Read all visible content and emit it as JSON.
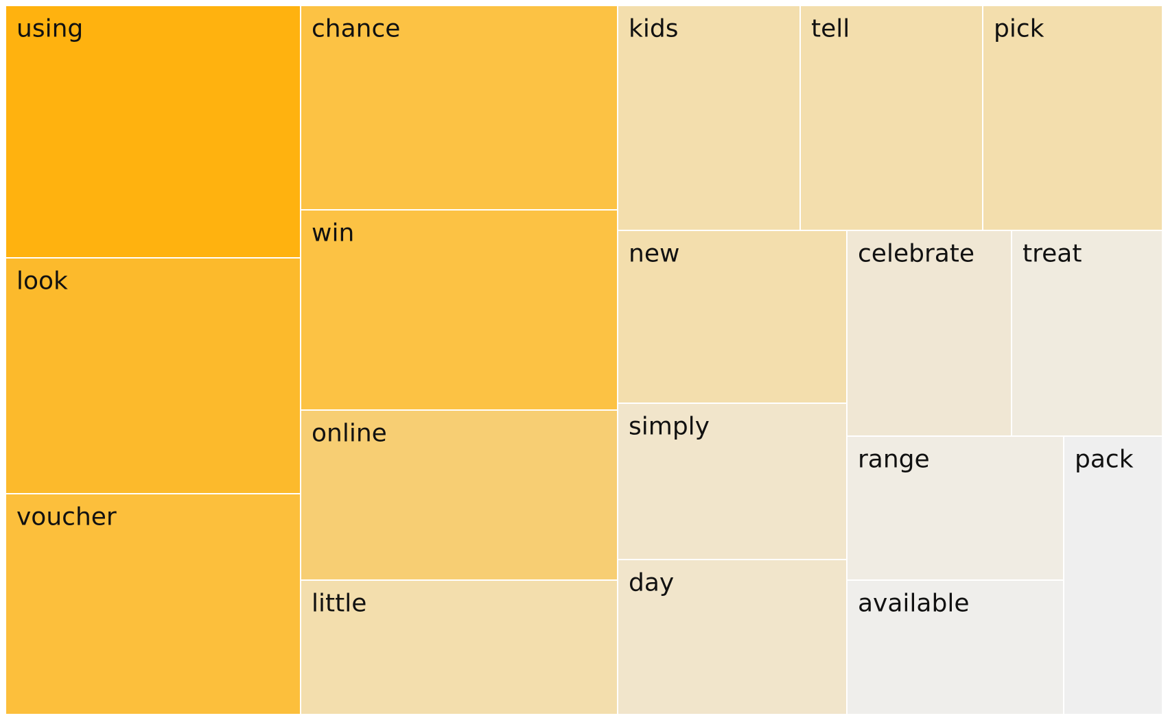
{
  "chart_data": {
    "type": "treemap",
    "title": "",
    "items": [
      {
        "label": "using",
        "color": "#FFB20F"
      },
      {
        "label": "look",
        "color": "#FCBA2C"
      },
      {
        "label": "voucher",
        "color": "#FCBF3C"
      },
      {
        "label": "chance",
        "color": "#FCC244"
      },
      {
        "label": "win",
        "color": "#FCC244"
      },
      {
        "label": "online",
        "color": "#F7CE73"
      },
      {
        "label": "little",
        "color": "#F3DEAD"
      },
      {
        "label": "kids",
        "color": "#F3DEAD"
      },
      {
        "label": "tell",
        "color": "#F3DEAD"
      },
      {
        "label": "pick",
        "color": "#F3DEAD"
      },
      {
        "label": "new",
        "color": "#F3DEAD"
      },
      {
        "label": "simply",
        "color": "#F1E5CB"
      },
      {
        "label": "day",
        "color": "#F1E5CB"
      },
      {
        "label": "celebrate",
        "color": "#F0E7D4"
      },
      {
        "label": "treat",
        "color": "#F0EBDF"
      },
      {
        "label": "range",
        "color": "#F0ECE3"
      },
      {
        "label": "available",
        "color": "#EFEEEB"
      },
      {
        "label": "pack",
        "color": "#EFEFEF"
      }
    ]
  }
}
